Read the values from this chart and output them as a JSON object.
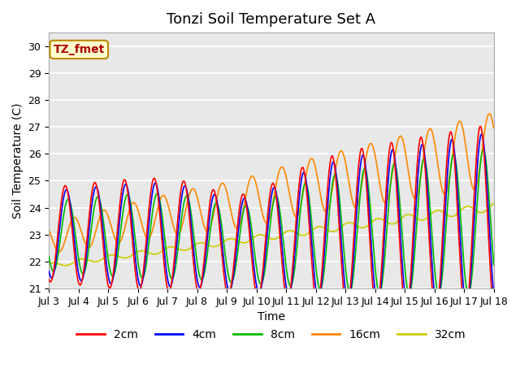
{
  "title": "Tonzi Soil Temperature Set A",
  "xlabel": "Time",
  "ylabel": "Soil Temperature (C)",
  "ylim": [
    21.0,
    30.5
  ],
  "xlim_days": [
    3,
    18
  ],
  "yticks": [
    21.0,
    22.0,
    23.0,
    24.0,
    25.0,
    26.0,
    27.0,
    28.0,
    29.0,
    30.0
  ],
  "xtick_labels": [
    "Jul 3",
    "Jul 4",
    "Jul 5",
    "Jul 6",
    "Jul 7",
    "Jul 8",
    "Jul 9",
    "Jul 10",
    "Jul 11",
    "Jul 12",
    "Jul 13",
    "Jul 14",
    "Jul 15",
    "Jul 16",
    "Jul 17",
    "Jul 18"
  ],
  "series_colors": {
    "2cm": "#ff0000",
    "4cm": "#0000ff",
    "8cm": "#00bb00",
    "16cm": "#ff8800",
    "32cm": "#cccc00"
  },
  "legend_entries": [
    "2cm",
    "4cm",
    "8cm",
    "16cm",
    "32cm"
  ],
  "annotation_text": "TZ_fmet",
  "annotation_facecolor": "#ffffcc",
  "annotation_edgecolor": "#bb8800",
  "annotation_textcolor": "#aa0000",
  "background_color": "#e8e8e8",
  "grid_color": "#ffffff",
  "title_fontsize": 13,
  "axis_label_fontsize": 10,
  "tick_fontsize": 9,
  "legend_fontsize": 10
}
